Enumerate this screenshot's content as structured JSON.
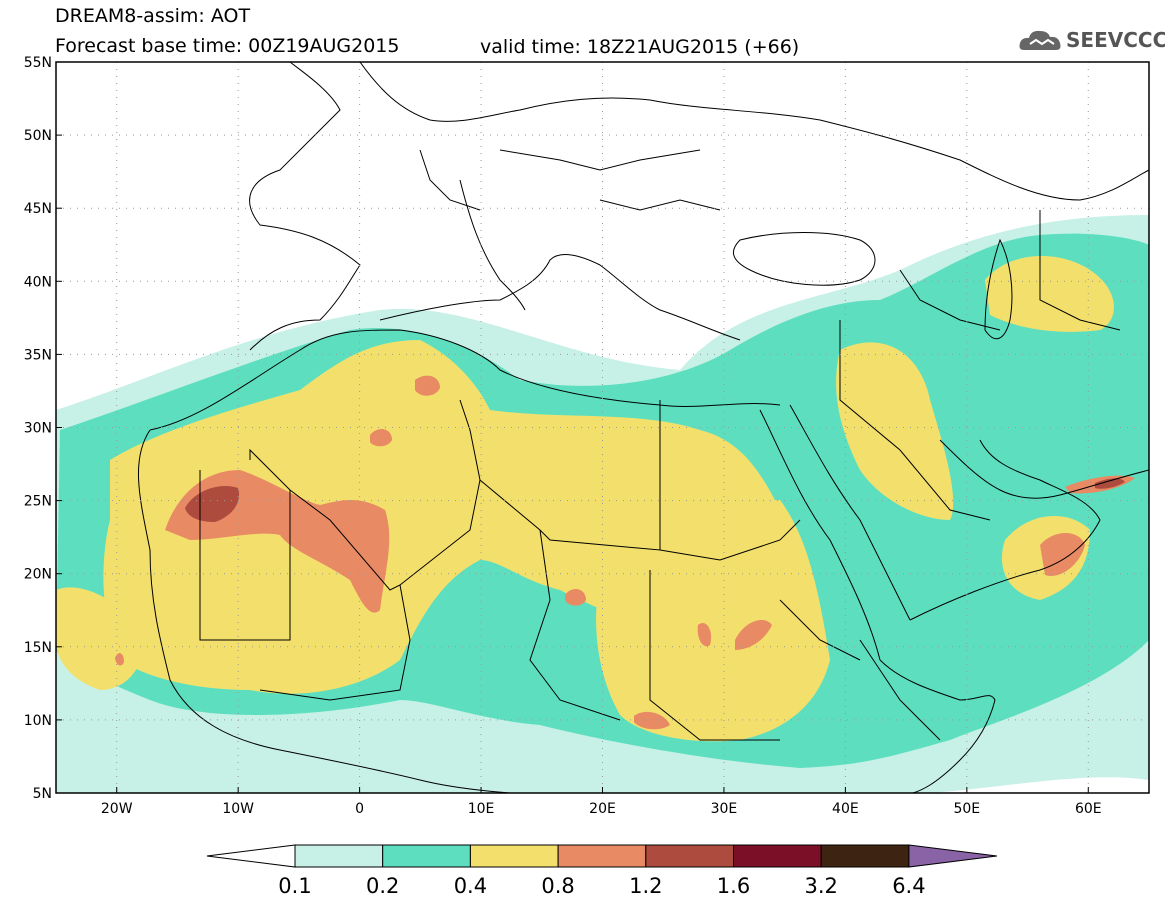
{
  "header": {
    "title_line1": "DREAM8-assim: AOT",
    "title_line2": "Forecast base time: 00Z19AUG2015",
    "valid_time": "valid time: 18Z21AUG2015 (+66)",
    "logo_text": "SEEVCCC"
  },
  "map": {
    "lat_labels": [
      "55N",
      "50N",
      "45N",
      "40N",
      "35N",
      "30N",
      "25N",
      "20N",
      "15N",
      "10N",
      "5N"
    ],
    "lon_labels": [
      "20W",
      "10W",
      "0",
      "10E",
      "20E",
      "30E",
      "40E",
      "50E",
      "60E"
    ],
    "lat_range": [
      5,
      55
    ],
    "lon_range": [
      -25,
      65
    ],
    "field": "Aerosol optical thickness (dust)"
  },
  "colorbar": {
    "labels": [
      "0.1",
      "0.2",
      "0.4",
      "0.8",
      "1.2",
      "1.6",
      "3.2",
      "6.4"
    ],
    "colors": [
      "#ffffff",
      "#c7f0e6",
      "#5ddfbf",
      "#f3e06c",
      "#e88a63",
      "#ad4c3e",
      "#7b0f27",
      "#3d2412",
      "#8a62a6"
    ]
  }
}
